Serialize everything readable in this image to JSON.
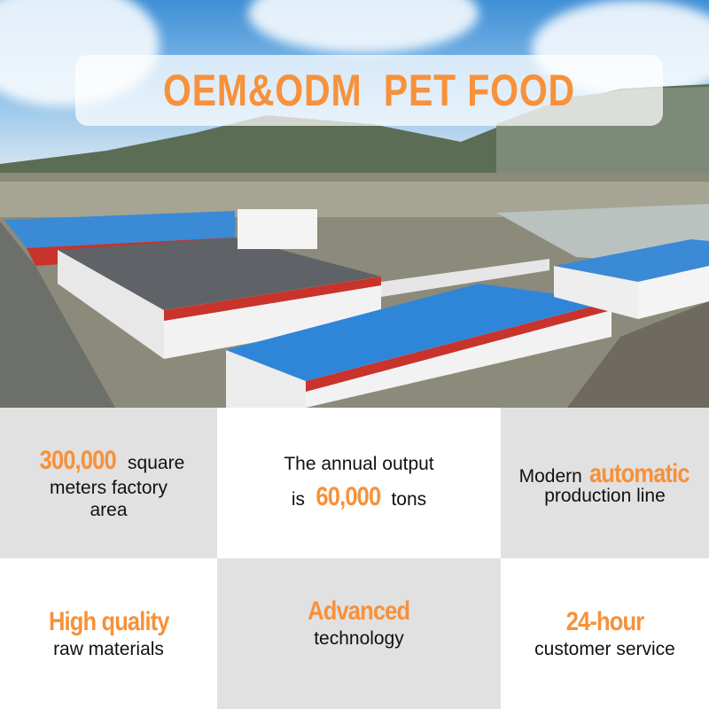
{
  "banner": {
    "title": "OEM&ODM  PET FOOD"
  },
  "colors": {
    "accent": "#f7913a",
    "grey_cell": "#e1e1e1",
    "roof_blue": "#2f86d9",
    "wall_red": "#c8332b"
  },
  "features": [
    {
      "highlight": "300,000",
      "text_after": " square",
      "line2": "meters factory",
      "line3": "area"
    },
    {
      "line1": "The annual output",
      "prefix": "is ",
      "highlight": "60,000",
      "suffix": " tons"
    },
    {
      "prefix": "Modern ",
      "highlight": "automatic",
      "line2": "production line"
    },
    {
      "highlight": "High quality",
      "line2": "raw materials"
    },
    {
      "highlight": "Advanced",
      "line2": "technology"
    },
    {
      "highlight": "24-hour",
      "line2": "customer service"
    }
  ]
}
